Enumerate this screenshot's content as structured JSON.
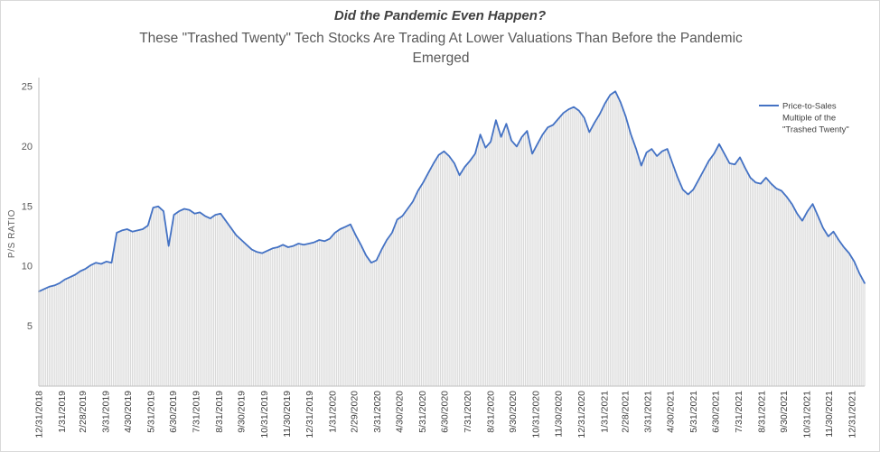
{
  "header": {
    "title": "Did the Pandemic Even Happen?",
    "subtitle": "These \"Trashed Twenty\" Tech Stocks Are Trading At Lower Valuations Than Before the Pandemic Emerged"
  },
  "legend": {
    "lines": [
      "Price-to-Sales",
      "Multiple of the",
      "\"Trashed Twenty\""
    ]
  },
  "colors": {
    "line": "#4472C4",
    "bars": "#D9D9D9",
    "axis": "#BFBFBF",
    "title_text": "#404040",
    "muted_text": "#595959"
  },
  "chart_data": {
    "type": "line",
    "title": "Did the Pandemic Even Happen?",
    "subtitle": "These \"Trashed Twenty\" Tech Stocks Are Trading At Lower Valuations Than Before the Pandemic Emerged",
    "ylabel": "P/S RATIO",
    "xlabel": "",
    "ylim": [
      0,
      25
    ],
    "yticks": [
      5,
      10,
      15,
      20,
      25
    ],
    "grid": false,
    "legend_position": "right-inside",
    "x_start_date": "12/31/2018",
    "x_interval_days": 7,
    "x_tick_labels": [
      "12/31/2018",
      "1/31/2019",
      "2/28/2019",
      "3/31/2019",
      "4/30/2019",
      "5/31/2019",
      "6/30/2019",
      "7/31/2019",
      "8/31/2019",
      "9/30/2019",
      "10/31/2019",
      "11/30/2019",
      "12/31/2019",
      "1/31/2020",
      "2/29/2020",
      "3/31/2020",
      "4/30/2020",
      "5/31/2020",
      "6/30/2020",
      "7/31/2020",
      "8/31/2020",
      "9/30/2020",
      "10/31/2020",
      "11/30/2020",
      "12/31/2020",
      "1/31/2021",
      "2/28/2021",
      "3/31/2021",
      "4/30/2021",
      "5/31/2021",
      "6/30/2021",
      "7/31/2021",
      "8/31/2021",
      "9/30/2021",
      "10/31/2021",
      "11/30/2021",
      "12/31/2021"
    ],
    "series": [
      {
        "name": "Price-to-Sales Multiple of the \"Trashed Twenty\"",
        "line_color": "#4472C4",
        "bar_color": "#D9D9D9",
        "values": [
          7.9,
          8.1,
          8.3,
          8.4,
          8.6,
          8.9,
          9.1,
          9.3,
          9.6,
          9.8,
          10.1,
          10.3,
          10.2,
          10.4,
          10.3,
          12.8,
          13,
          13.1,
          12.9,
          13,
          13.1,
          13.4,
          14.9,
          15,
          14.6,
          11.7,
          14.3,
          14.6,
          14.8,
          14.7,
          14.4,
          14.5,
          14.2,
          14,
          14.3,
          14.4,
          13.8,
          13.2,
          12.6,
          12.2,
          11.8,
          11.4,
          11.2,
          11.1,
          11.3,
          11.5,
          11.6,
          11.8,
          11.6,
          11.7,
          11.9,
          11.8,
          11.9,
          12,
          12.2,
          12.1,
          12.3,
          12.8,
          13.1,
          13.3,
          13.5,
          12.6,
          11.8,
          10.9,
          10.3,
          10.5,
          11.4,
          12.2,
          12.8,
          13.9,
          14.2,
          14.8,
          15.4,
          16.3,
          17,
          17.8,
          18.6,
          19.3,
          19.6,
          19.2,
          18.6,
          17.6,
          18.3,
          18.8,
          19.4,
          21,
          19.9,
          20.4,
          22.2,
          20.8,
          21.9,
          20.5,
          20,
          20.8,
          21.3,
          19.4,
          20.2,
          21,
          21.6,
          21.8,
          22.3,
          22.8,
          23.1,
          23.3,
          23,
          22.4,
          21.2,
          22,
          22.7,
          23.6,
          24.3,
          24.6,
          23.7,
          22.5,
          21,
          19.8,
          18.4,
          19.5,
          19.8,
          19.2,
          19.6,
          19.8,
          18.6,
          17.4,
          16.4,
          16,
          16.4,
          17.2,
          18,
          18.8,
          19.4,
          20.2,
          19.4,
          18.6,
          18.5,
          19.1,
          18.2,
          17.4,
          17,
          16.9,
          17.4,
          16.9,
          16.5,
          16.3,
          15.8,
          15.2,
          14.4,
          13.8,
          14.6,
          15.2,
          14.2,
          13.2,
          12.5,
          12.9,
          12.2,
          11.6,
          11.1,
          10.4,
          9.4,
          8.6
        ]
      }
    ]
  }
}
